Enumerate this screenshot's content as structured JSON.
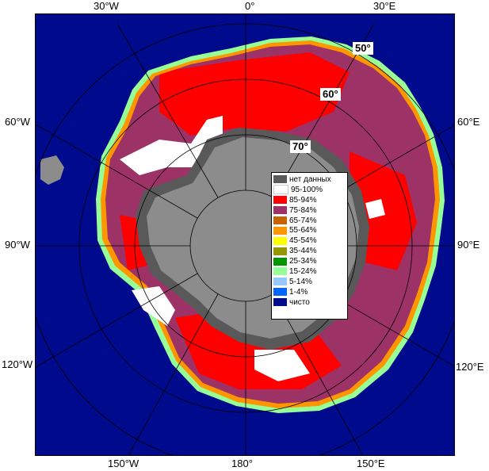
{
  "map": {
    "colors": {
      "ocean": "#000a8c",
      "land": "#8c8c8c",
      "no_data": "#595959",
      "concentrated": "#ff0000",
      "high": "#9c3266",
      "open_white": "#ffffff",
      "grid": "#c8c8c8"
    },
    "longitude_labels": {
      "top_left": "30°W",
      "top_center": "0°",
      "top_right": "30°E",
      "left_upper": "60°W",
      "right_upper": "60°E",
      "left_mid": "90°W",
      "right_mid": "90°E",
      "left_lower": "120°W",
      "right_lower": "120°E",
      "bottom_left": "150°W",
      "bottom_center": "180°",
      "bottom_right": "150°E"
    },
    "latitude_labels": {
      "lat50": "50°",
      "lat60": "60°",
      "lat70": "70°"
    }
  },
  "legend": {
    "items": [
      {
        "label": "нет данных",
        "color": "#595959"
      },
      {
        "label": "95-100%",
        "color": "#ffffff"
      },
      {
        "label": "85-94%",
        "color": "#ff0000"
      },
      {
        "label": "75-84%",
        "color": "#9c3266"
      },
      {
        "label": "65-74%",
        "color": "#c86400"
      },
      {
        "label": "55-64%",
        "color": "#ff9600"
      },
      {
        "label": "45-54%",
        "color": "#ffff00"
      },
      {
        "label": "35-44%",
        "color": "#969600"
      },
      {
        "label": "25-34%",
        "color": "#009600"
      },
      {
        "label": "15-24%",
        "color": "#96ff96"
      },
      {
        "label": "5-14%",
        "color": "#96c8ff"
      },
      {
        "label": "1-4%",
        "color": "#0064ff"
      },
      {
        "label": "чисто",
        "color": "#000a8c"
      }
    ]
  }
}
